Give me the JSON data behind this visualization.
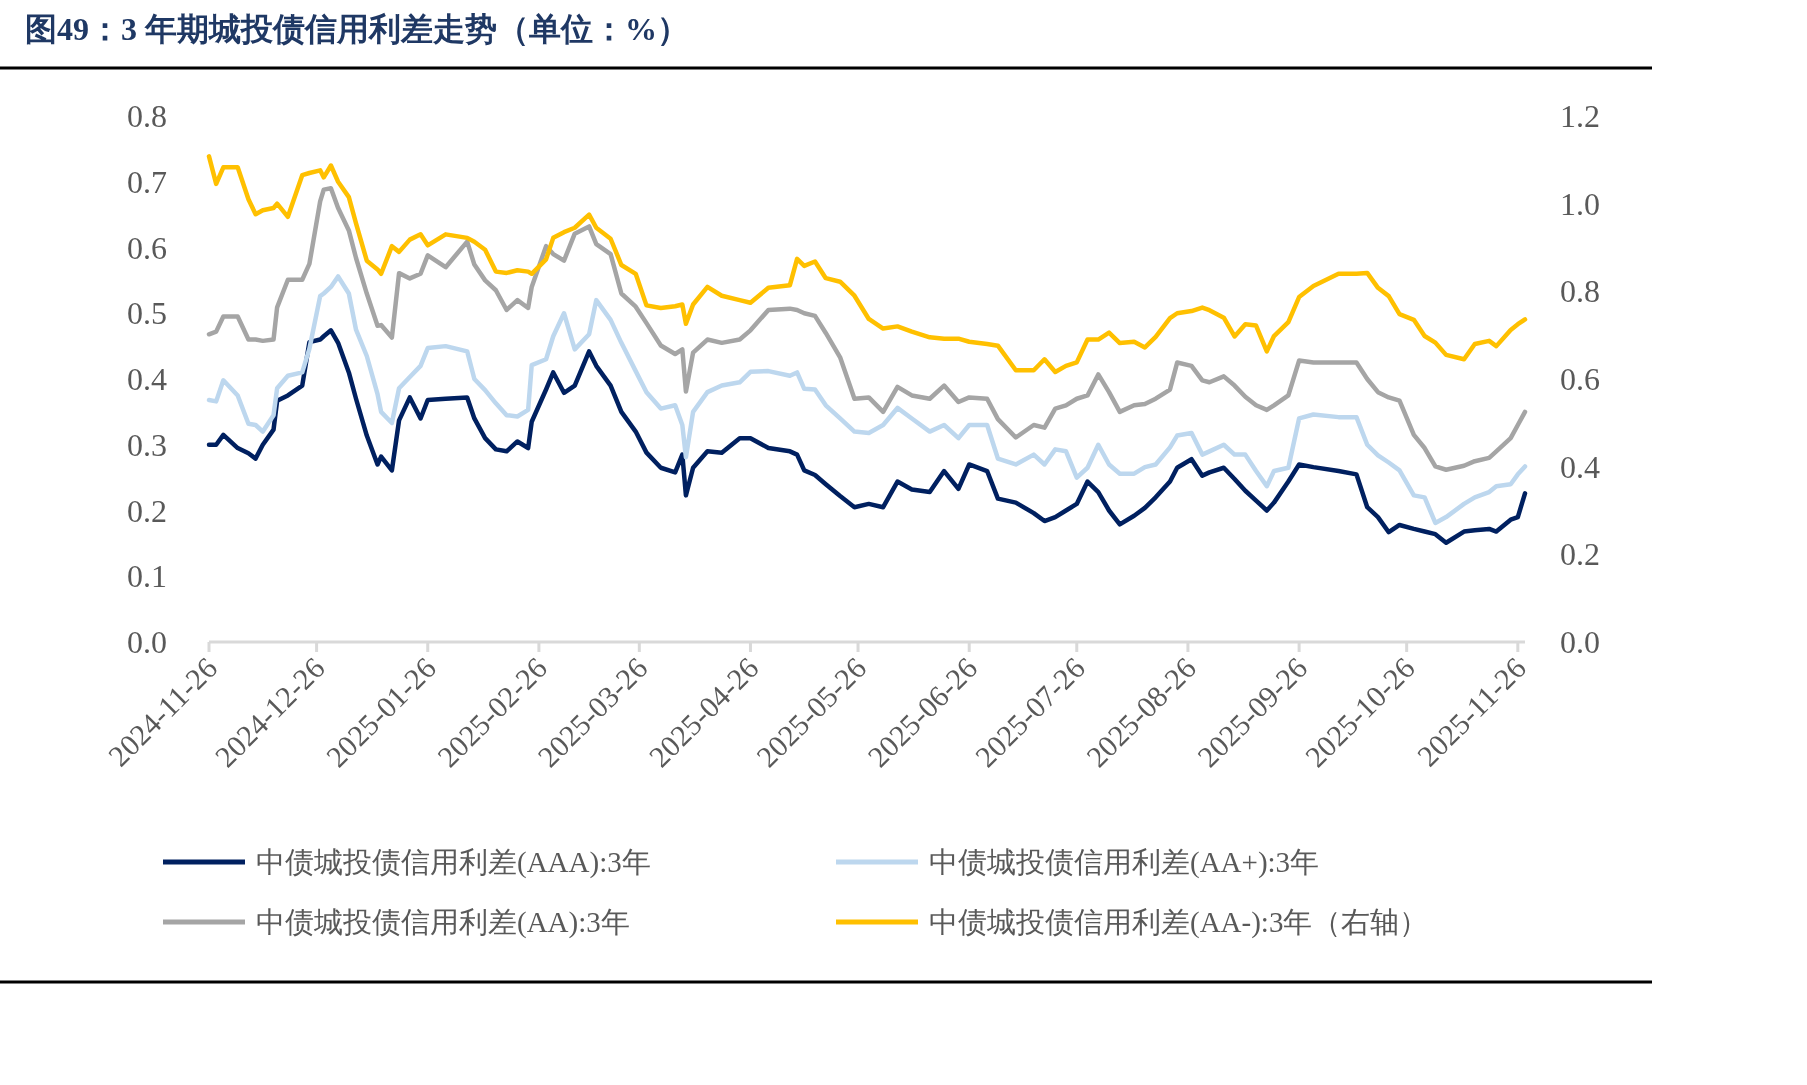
{
  "chart_data": {
    "type": "line",
    "title": "图49：3 年期城投债信用利差走势（单位：%）",
    "x": [
      "2024-11-26",
      "2024-11-28",
      "2024-11-30",
      "2024-12-04",
      "2024-12-07",
      "2024-12-09",
      "2024-12-11",
      "2024-12-14",
      "2024-12-15",
      "2024-12-18",
      "2024-12-22",
      "2024-12-24",
      "2024-12-27",
      "2024-12-28",
      "2024-12-30",
      "2025-01-01",
      "2025-01-04",
      "2025-01-06",
      "2025-01-09",
      "2025-01-12",
      "2025-01-13",
      "2025-01-16",
      "2025-01-18",
      "2025-01-21",
      "2025-01-24",
      "2025-01-26",
      "2025-01-31",
      "2025-02-06",
      "2025-02-08",
      "2025-02-11",
      "2025-02-14",
      "2025-02-17",
      "2025-02-20",
      "2025-02-23",
      "2025-02-24",
      "2025-02-28",
      "2025-03-02",
      "2025-03-05",
      "2025-03-08",
      "2025-03-12",
      "2025-03-14",
      "2025-03-18",
      "2025-03-21",
      "2025-03-25",
      "2025-03-28",
      "2025-04-01",
      "2025-04-05",
      "2025-04-07",
      "2025-04-08",
      "2025-04-10",
      "2025-04-14",
      "2025-04-18",
      "2025-04-23",
      "2025-04-26",
      "2025-05-01",
      "2025-05-07",
      "2025-05-09",
      "2025-05-11",
      "2025-05-14",
      "2025-05-17",
      "2025-05-21",
      "2025-05-25",
      "2025-05-29",
      "2025-06-02",
      "2025-06-06",
      "2025-06-10",
      "2025-06-15",
      "2025-06-19",
      "2025-06-23",
      "2025-06-26",
      "2025-07-01",
      "2025-07-04",
      "2025-07-09",
      "2025-07-14",
      "2025-07-17",
      "2025-07-20",
      "2025-07-23",
      "2025-07-26",
      "2025-07-29",
      "2025-08-01",
      "2025-08-04",
      "2025-08-07",
      "2025-08-11",
      "2025-08-14",
      "2025-08-17",
      "2025-08-21",
      "2025-08-23",
      "2025-08-27",
      "2025-08-30",
      "2025-09-01",
      "2025-09-05",
      "2025-09-08",
      "2025-09-11",
      "2025-09-14",
      "2025-09-17",
      "2025-09-19",
      "2025-09-23",
      "2025-09-26",
      "2025-09-30",
      "2025-10-07",
      "2025-10-12",
      "2025-10-15",
      "2025-10-18",
      "2025-10-21",
      "2025-10-24",
      "2025-10-28",
      "2025-10-31",
      "2025-11-03",
      "2025-11-06",
      "2025-11-11",
      "2025-11-14",
      "2025-11-18",
      "2025-11-20",
      "2025-11-24",
      "2025-11-26",
      "2025-11-28"
    ],
    "series": [
      {
        "name": "中债城投债信用利差(AAA):3年",
        "color": "#002060",
        "values": [
          0.3,
          0.3,
          0.315,
          0.295,
          0.287,
          0.279,
          0.3,
          0.323,
          0.367,
          0.375,
          0.39,
          0.456,
          0.46,
          0.465,
          0.474,
          0.455,
          0.41,
          0.37,
          0.314,
          0.27,
          0.282,
          0.261,
          0.337,
          0.372,
          0.34,
          0.368,
          0.37,
          0.372,
          0.34,
          0.31,
          0.293,
          0.29,
          0.305,
          0.295,
          0.335,
          0.384,
          0.41,
          0.379,
          0.39,
          0.442,
          0.42,
          0.39,
          0.35,
          0.32,
          0.288,
          0.265,
          0.258,
          0.285,
          0.223,
          0.265,
          0.29,
          0.288,
          0.31,
          0.31,
          0.295,
          0.29,
          0.285,
          0.261,
          0.254,
          0.24,
          0.222,
          0.205,
          0.21,
          0.205,
          0.244,
          0.232,
          0.228,
          0.26,
          0.233,
          0.27,
          0.26,
          0.218,
          0.212,
          0.196,
          0.184,
          0.19,
          0.2,
          0.21,
          0.244,
          0.228,
          0.2,
          0.179,
          0.192,
          0.204,
          0.22,
          0.244,
          0.265,
          0.278,
          0.253,
          0.258,
          0.265,
          0.248,
          0.23,
          0.215,
          0.2,
          0.212,
          0.244,
          0.27,
          0.266,
          0.26,
          0.255,
          0.205,
          0.19,
          0.167,
          0.178,
          0.172,
          0.168,
          0.164,
          0.151,
          0.168,
          0.17,
          0.172,
          0.168,
          0.186,
          0.19,
          0.226
        ]
      },
      {
        "name": "中债城投债信用利差(AA+):3年",
        "color": "#bdd7ee",
        "values": [
          0.368,
          0.366,
          0.398,
          0.375,
          0.332,
          0.33,
          0.32,
          0.345,
          0.386,
          0.405,
          0.41,
          0.446,
          0.526,
          0.53,
          0.54,
          0.556,
          0.53,
          0.475,
          0.435,
          0.377,
          0.35,
          0.333,
          0.386,
          0.403,
          0.42,
          0.447,
          0.45,
          0.442,
          0.4,
          0.383,
          0.363,
          0.345,
          0.343,
          0.353,
          0.421,
          0.43,
          0.465,
          0.5,
          0.445,
          0.468,
          0.52,
          0.49,
          0.455,
          0.412,
          0.38,
          0.355,
          0.36,
          0.33,
          0.281,
          0.35,
          0.38,
          0.39,
          0.395,
          0.411,
          0.412,
          0.405,
          0.41,
          0.385,
          0.384,
          0.36,
          0.34,
          0.32,
          0.318,
          0.33,
          0.356,
          0.34,
          0.32,
          0.33,
          0.31,
          0.33,
          0.33,
          0.279,
          0.27,
          0.285,
          0.27,
          0.293,
          0.29,
          0.25,
          0.265,
          0.3,
          0.27,
          0.256,
          0.256,
          0.266,
          0.27,
          0.296,
          0.314,
          0.318,
          0.285,
          0.29,
          0.3,
          0.285,
          0.285,
          0.26,
          0.237,
          0.26,
          0.265,
          0.34,
          0.346,
          0.342,
          0.342,
          0.3,
          0.284,
          0.273,
          0.261,
          0.223,
          0.22,
          0.181,
          0.19,
          0.21,
          0.22,
          0.228,
          0.237,
          0.24,
          0.255,
          0.267
        ]
      },
      {
        "name": "中债城投债信用利差(AA):3年",
        "color": "#a5a5a5",
        "values": [
          0.468,
          0.472,
          0.495,
          0.495,
          0.46,
          0.46,
          0.458,
          0.46,
          0.509,
          0.551,
          0.551,
          0.575,
          0.67,
          0.688,
          0.69,
          0.66,
          0.626,
          0.584,
          0.53,
          0.481,
          0.482,
          0.463,
          0.561,
          0.553,
          0.56,
          0.588,
          0.57,
          0.609,
          0.574,
          0.55,
          0.535,
          0.505,
          0.52,
          0.508,
          0.54,
          0.602,
          0.59,
          0.58,
          0.621,
          0.632,
          0.605,
          0.59,
          0.53,
          0.51,
          0.485,
          0.451,
          0.438,
          0.445,
          0.381,
          0.44,
          0.46,
          0.455,
          0.46,
          0.474,
          0.505,
          0.507,
          0.505,
          0.5,
          0.496,
          0.47,
          0.433,
          0.37,
          0.372,
          0.35,
          0.388,
          0.375,
          0.37,
          0.39,
          0.365,
          0.372,
          0.37,
          0.339,
          0.311,
          0.33,
          0.326,
          0.355,
          0.36,
          0.37,
          0.375,
          0.407,
          0.38,
          0.35,
          0.36,
          0.362,
          0.37,
          0.384,
          0.425,
          0.42,
          0.398,
          0.395,
          0.404,
          0.39,
          0.373,
          0.36,
          0.353,
          0.36,
          0.375,
          0.428,
          0.425,
          0.425,
          0.425,
          0.4,
          0.38,
          0.372,
          0.367,
          0.315,
          0.295,
          0.267,
          0.262,
          0.268,
          0.275,
          0.28,
          0.29,
          0.31,
          0.33,
          0.35
        ]
      },
      {
        "name": "中债城投债信用利差(AA-):3年（右轴）",
        "color": "#ffc000",
        "axis": "y2",
        "values": [
          1.108,
          1.045,
          1.083,
          1.083,
          1.01,
          0.976,
          0.985,
          0.99,
          1.0,
          0.97,
          1.065,
          1.07,
          1.076,
          1.06,
          1.087,
          1.05,
          1.015,
          0.955,
          0.87,
          0.85,
          0.84,
          0.903,
          0.89,
          0.918,
          0.93,
          0.905,
          0.93,
          0.922,
          0.913,
          0.895,
          0.845,
          0.842,
          0.848,
          0.845,
          0.84,
          0.873,
          0.922,
          0.935,
          0.945,
          0.975,
          0.945,
          0.92,
          0.86,
          0.84,
          0.768,
          0.762,
          0.766,
          0.77,
          0.726,
          0.77,
          0.81,
          0.79,
          0.78,
          0.774,
          0.808,
          0.814,
          0.874,
          0.858,
          0.868,
          0.83,
          0.822,
          0.79,
          0.737,
          0.715,
          0.72,
          0.708,
          0.695,
          0.692,
          0.692,
          0.685,
          0.68,
          0.676,
          0.62,
          0.62,
          0.645,
          0.616,
          0.63,
          0.638,
          0.69,
          0.69,
          0.706,
          0.682,
          0.685,
          0.672,
          0.696,
          0.739,
          0.75,
          0.755,
          0.763,
          0.757,
          0.74,
          0.697,
          0.725,
          0.722,
          0.663,
          0.698,
          0.73,
          0.787,
          0.812,
          0.84,
          0.84,
          0.842,
          0.808,
          0.789,
          0.748,
          0.735,
          0.698,
          0.683,
          0.655,
          0.645,
          0.68,
          0.687,
          0.675,
          0.712,
          0.725,
          0.736
        ]
      }
    ],
    "xlim": [
      "2024-11-26",
      "2025-11-28"
    ],
    "xticks": [
      "2024-11-26",
      "2024-12-26",
      "2025-01-26",
      "2025-02-26",
      "2025-03-26",
      "2025-04-26",
      "2025-05-26",
      "2025-06-26",
      "2025-07-26",
      "2025-08-26",
      "2025-09-26",
      "2025-10-26",
      "2025-11-26"
    ],
    "ylim": [
      0,
      0.8
    ],
    "yticks": [
      {
        "value": 0,
        "label": "0.0"
      },
      0.1,
      0.2,
      0.3,
      0.4,
      0.5,
      0.6,
      0.7,
      0.8
    ],
    "y2lim": [
      0,
      1.2
    ],
    "y2ticks": [
      {
        "value": 0,
        "label": "0.0"
      },
      0.2,
      0.4,
      0.6,
      0.8,
      {
        "value": 1,
        "label": "1.0"
      },
      1.2
    ],
    "grid": false,
    "legend": "bottom",
    "marker": "none",
    "line_style": "solid"
  }
}
